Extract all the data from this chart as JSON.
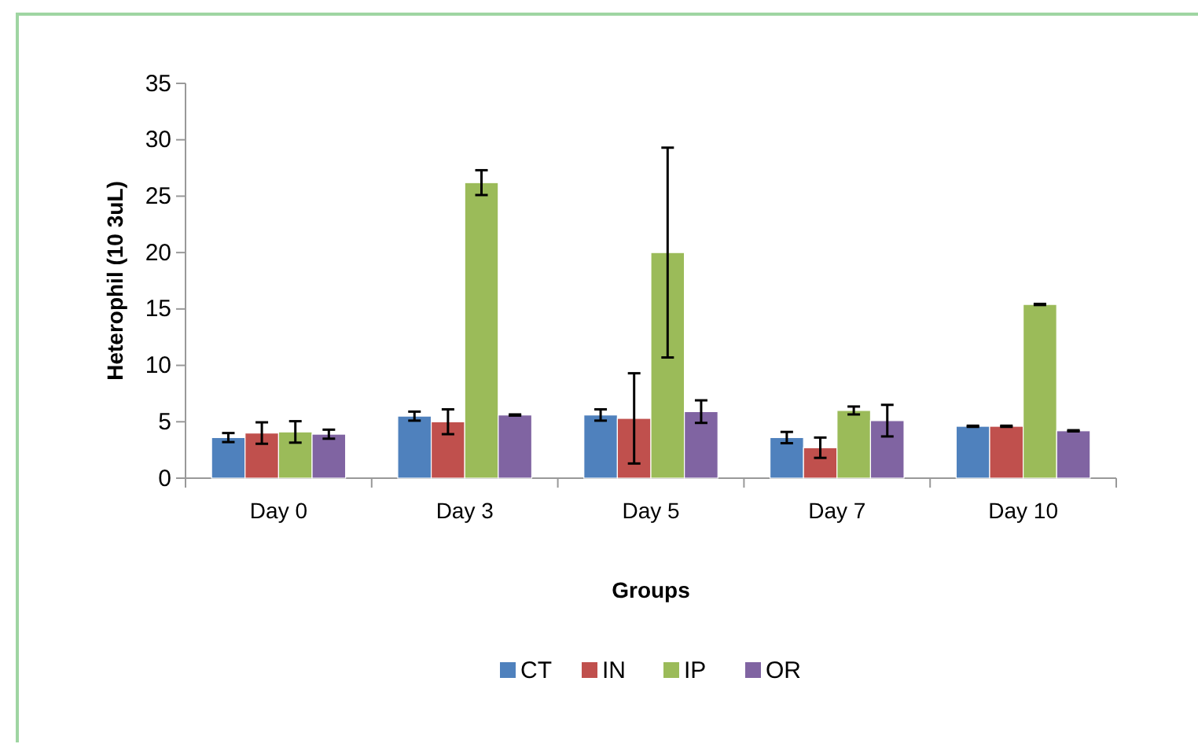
{
  "chart_data": {
    "type": "bar",
    "xlabel": "Groups",
    "ylabel": "Heterophil (10 3uL)",
    "categories": [
      "Day 0",
      "Day 3",
      "Day 5",
      "Day 7",
      "Day 10"
    ],
    "series": [
      {
        "name": "CT",
        "color": "#4f81bd",
        "values": [
          3.6,
          5.5,
          5.6,
          3.6,
          4.6
        ],
        "errors": [
          0.4,
          0.4,
          0.5,
          0.5,
          0.05
        ]
      },
      {
        "name": "IN",
        "color": "#c0504d",
        "values": [
          4.0,
          5.0,
          5.3,
          2.7,
          4.6
        ],
        "errors": [
          0.95,
          1.1,
          4.0,
          0.9,
          0.05
        ]
      },
      {
        "name": "IP",
        "color": "#9bbb59",
        "values": [
          4.1,
          26.2,
          20.0,
          6.0,
          15.4
        ],
        "errors": [
          0.95,
          1.1,
          9.3,
          0.35,
          0.05
        ]
      },
      {
        "name": "OR",
        "color": "#8064a2",
        "values": [
          3.9,
          5.6,
          5.9,
          5.1,
          4.2
        ],
        "errors": [
          0.4,
          0.05,
          1.0,
          1.4,
          0.05
        ]
      }
    ],
    "ylim": [
      0,
      35
    ],
    "yticks": [
      0,
      5,
      10,
      15,
      20,
      25,
      30,
      35
    ],
    "grid": false,
    "legend": "bottom"
  }
}
